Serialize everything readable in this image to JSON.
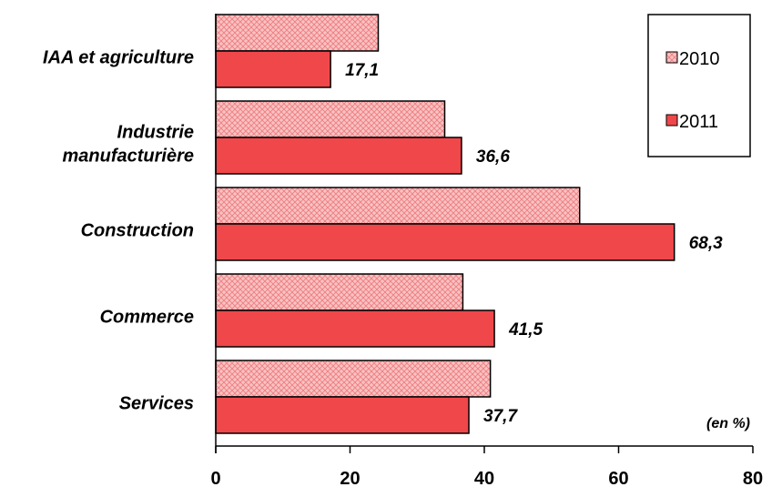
{
  "chart_data": {
    "type": "bar",
    "orientation": "horizontal",
    "categories": [
      "IAA et agriculture",
      "Industrie manufacturière",
      "Construction",
      "Commerce",
      "Services"
    ],
    "category_lines": [
      [
        "IAA et agriculture"
      ],
      [
        "Industrie",
        "manufacturière"
      ],
      [
        "Construction"
      ],
      [
        "Commerce"
      ],
      [
        "Services"
      ]
    ],
    "series": [
      {
        "name": "2010",
        "values": [
          24.2,
          34.1,
          54.2,
          36.8,
          40.9
        ],
        "color": "#f9b3b3",
        "pattern": "crosshatch"
      },
      {
        "name": "2011",
        "values": [
          17.1,
          36.6,
          68.3,
          41.5,
          37.7
        ],
        "color": "#f0474b",
        "pattern": "solid"
      }
    ],
    "data_labels": [
      "17,1",
      "36,6",
      "68,3",
      "41,5",
      "37,7"
    ],
    "xlim": [
      0,
      80
    ],
    "xticks": [
      0,
      20,
      40,
      60,
      80
    ],
    "tick_labels": [
      "0",
      "20",
      "40",
      "60",
      "80"
    ],
    "unit_note": "(en %)",
    "legend": {
      "placement": "top-right",
      "entries": [
        "2010",
        "2011"
      ]
    },
    "grid": false
  }
}
